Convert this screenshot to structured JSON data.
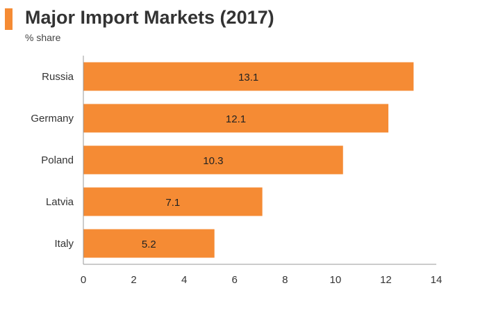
{
  "header": {
    "title": "Major Import Markets (2017)",
    "subtitle": "% share"
  },
  "colors": {
    "accent": "#f58b34",
    "bar": "#f58b34",
    "axis": "#999999"
  },
  "chart_data": {
    "type": "bar",
    "orientation": "horizontal",
    "title": "Major Import Markets (2017)",
    "subtitle": "% share",
    "categories": [
      "Russia",
      "Germany",
      "Poland",
      "Latvia",
      "Italy"
    ],
    "values": [
      13.1,
      12.1,
      10.3,
      7.1,
      5.2
    ],
    "data_labels": [
      "13.1",
      "12.1",
      "10.3",
      "7.1",
      "5.2"
    ],
    "xlim": [
      0,
      14
    ],
    "xticks": [
      0,
      2,
      4,
      6,
      8,
      10,
      12,
      14
    ],
    "grid": false,
    "legend": "none"
  }
}
